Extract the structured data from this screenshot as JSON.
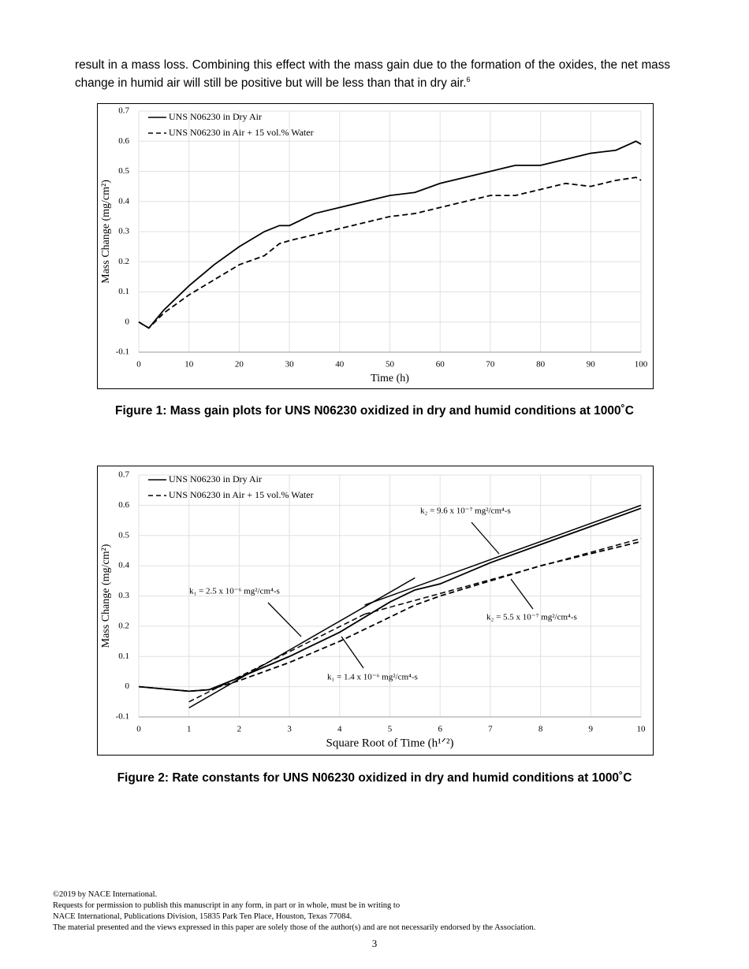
{
  "paragraph": {
    "text": "result in a mass loss. Combining this effect with the mass gain due to the formation of the oxides, the net mass change in humid air will still be positive but will be less than that in dry air.",
    "ref": "6"
  },
  "chart_data": [
    {
      "type": "line",
      "xlabel": "Time (h)",
      "ylabel": "Mass Change (mg/cm²)",
      "x": [
        0,
        2,
        5,
        10,
        15,
        20,
        25,
        28,
        30,
        35,
        40,
        45,
        50,
        55,
        60,
        65,
        70,
        75,
        80,
        85,
        90,
        95,
        99,
        100
      ],
      "series": [
        {
          "name": "UNS N06230 in Dry Air",
          "color": "#000000",
          "dash": false,
          "values": [
            0,
            -0.02,
            0.04,
            0.12,
            0.19,
            0.25,
            0.3,
            0.32,
            0.32,
            0.36,
            0.38,
            0.4,
            0.42,
            0.43,
            0.46,
            0.48,
            0.5,
            0.52,
            0.52,
            0.54,
            0.56,
            0.57,
            0.6,
            0.59
          ]
        },
        {
          "name": "UNS N06230 in Air + 15 vol.% Water",
          "color": "#000000",
          "dash": true,
          "values": [
            0,
            -0.02,
            0.03,
            0.09,
            0.14,
            0.19,
            0.22,
            0.26,
            0.27,
            0.29,
            0.31,
            0.33,
            0.35,
            0.36,
            0.38,
            0.4,
            0.42,
            0.42,
            0.44,
            0.46,
            0.45,
            0.47,
            0.48,
            0.47
          ]
        }
      ],
      "xlim": [
        0,
        100
      ],
      "xticks": [
        0,
        10,
        20,
        30,
        40,
        50,
        60,
        70,
        80,
        90,
        100
      ],
      "ylim": [
        -0.1,
        0.7
      ],
      "yticks": [
        -0.1,
        0,
        0.1,
        0.2,
        0.3,
        0.4,
        0.5,
        0.6,
        0.7
      ],
      "grid": true,
      "legend": "upper left",
      "caption": "Figure 1: Mass gain plots for UNS N06230 oxidized in dry and humid conditions at 1000˚C"
    },
    {
      "type": "line",
      "xlabel": "Square Root of Time (h¹ᐟ²)",
      "ylabel": "Mass Change (mg/cm²)",
      "x": [
        0,
        1,
        1.4,
        2,
        3,
        4,
        5,
        5.5,
        6,
        7,
        8,
        9,
        10
      ],
      "series": [
        {
          "name": "UNS N06230 in Dry Air",
          "color": "#000000",
          "dash": false,
          "values": [
            0,
            -0.015,
            -0.01,
            0.03,
            0.1,
            0.18,
            0.28,
            0.32,
            0.34,
            0.41,
            0.47,
            0.53,
            0.59
          ]
        },
        {
          "name": "UNS N06230 in Air + 15 vol.% Water",
          "color": "#000000",
          "dash": true,
          "values": [
            0,
            -0.015,
            -0.01,
            0.02,
            0.08,
            0.15,
            0.23,
            0.27,
            0.3,
            0.35,
            0.4,
            0.44,
            0.48
          ]
        }
      ],
      "fit_lines": [
        {
          "x": [
            1,
            5.5
          ],
          "values": [
            -0.07,
            0.36
          ],
          "dash": false
        },
        {
          "x": [
            1,
            4.5
          ],
          "values": [
            -0.05,
            0.24
          ],
          "dash": true
        },
        {
          "x": [
            4.5,
            10
          ],
          "values": [
            0.27,
            0.6
          ],
          "dash": false
        },
        {
          "x": [
            4.5,
            10
          ],
          "values": [
            0.24,
            0.49
          ],
          "dash": true
        }
      ],
      "annotations": [
        "k₂ = 9.6 x 10⁻⁷  mg²/cm⁴-s",
        "k₁ = 2.5 x 10⁻⁶ mg²/cm⁴-s",
        "k₂ = 5.5 x 10⁻⁷  mg²/cm⁴-s",
        "k₁ = 1.4 x 10⁻⁶  mg²/cm⁴-s"
      ],
      "xlim": [
        0,
        10
      ],
      "xticks": [
        0,
        1,
        2,
        3,
        4,
        5,
        6,
        7,
        8,
        9,
        10
      ],
      "ylim": [
        -0.1,
        0.7
      ],
      "yticks": [
        -0.1,
        0,
        0.1,
        0.2,
        0.3,
        0.4,
        0.5,
        0.6,
        0.7
      ],
      "grid": true,
      "legend": "upper left",
      "caption": "Figure 2: Rate constants for UNS N06230 oxidized in dry and humid conditions at 1000˚C"
    }
  ],
  "footer": {
    "lines": [
      "©2019 by NACE International.",
      "Requests for permission to publish this manuscript in any form, in part or in whole, must be in writing to",
      "NACE International, Publications Division, 15835 Park Ten Place, Houston, Texas 77084.",
      "The material presented and the views expressed in this paper are solely those of the author(s) and are not necessarily endorsed by the Association."
    ],
    "page_number": "3"
  }
}
